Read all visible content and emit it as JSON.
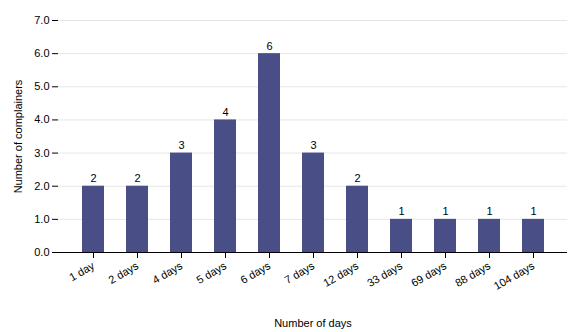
{
  "chart_data": {
    "type": "bar",
    "categories": [
      "1 day",
      "2 days",
      "4 days",
      "5 days",
      "6 days",
      "7 days",
      "12 days",
      "33 days",
      "69 days",
      "88 days",
      "104 days"
    ],
    "values": [
      2,
      2,
      3,
      4,
      6,
      3,
      2,
      1,
      1,
      1,
      1
    ],
    "color": "#4a4e87",
    "xlabel": "Number of days",
    "ylabel": "Number of complainers",
    "ylim": [
      0,
      7
    ],
    "yticks": [
      0,
      1,
      2,
      3,
      4,
      5,
      6,
      7
    ],
    "grid": true,
    "data_labels": true
  }
}
